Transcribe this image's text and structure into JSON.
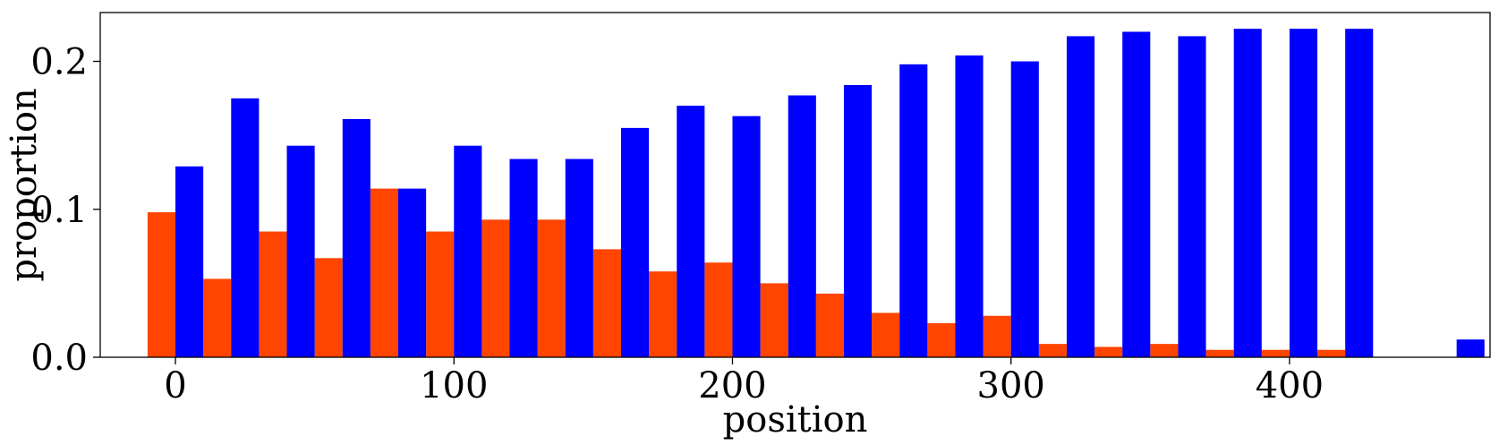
{
  "chart_data": {
    "type": "bar",
    "xlabel": "position",
    "ylabel": "proportion",
    "xlim": [
      -27,
      472
    ],
    "ylim": [
      0,
      0.233
    ],
    "xticks": [
      0,
      100,
      200,
      300,
      400
    ],
    "xtick_labels": [
      "0",
      "100",
      "200",
      "300",
      "400"
    ],
    "yticks": [
      0.0,
      0.1,
      0.2
    ],
    "ytick_labels": [
      "0.0",
      "0.1",
      "0.2"
    ],
    "bin_width": 20,
    "grid": false,
    "series": [
      {
        "color": "#ff4500",
        "bins": [
          {
            "x": 0,
            "value": 0.098
          },
          {
            "x": 20,
            "value": 0.053
          },
          {
            "x": 40,
            "value": 0.085
          },
          {
            "x": 60,
            "value": 0.067
          },
          {
            "x": 80,
            "value": 0.114
          },
          {
            "x": 100,
            "value": 0.085
          },
          {
            "x": 120,
            "value": 0.093
          },
          {
            "x": 140,
            "value": 0.093
          },
          {
            "x": 160,
            "value": 0.073
          },
          {
            "x": 180,
            "value": 0.058
          },
          {
            "x": 200,
            "value": 0.064
          },
          {
            "x": 220,
            "value": 0.05
          },
          {
            "x": 240,
            "value": 0.043
          },
          {
            "x": 260,
            "value": 0.03
          },
          {
            "x": 280,
            "value": 0.023
          },
          {
            "x": 300,
            "value": 0.028
          },
          {
            "x": 320,
            "value": 0.009
          },
          {
            "x": 340,
            "value": 0.007
          },
          {
            "x": 360,
            "value": 0.009
          },
          {
            "x": 380,
            "value": 0.005
          },
          {
            "x": 400,
            "value": 0.005
          },
          {
            "x": 420,
            "value": 0.005
          }
        ]
      },
      {
        "color": "#0000ff",
        "bins": [
          {
            "x": 20,
            "value": 0.129
          },
          {
            "x": 40,
            "value": 0.175
          },
          {
            "x": 60,
            "value": 0.143
          },
          {
            "x": 80,
            "value": 0.161
          },
          {
            "x": 100,
            "value": 0.114
          },
          {
            "x": 120,
            "value": 0.143
          },
          {
            "x": 140,
            "value": 0.134
          },
          {
            "x": 160,
            "value": 0.134
          },
          {
            "x": 180,
            "value": 0.155
          },
          {
            "x": 200,
            "value": 0.17
          },
          {
            "x": 220,
            "value": 0.163
          },
          {
            "x": 240,
            "value": 0.177
          },
          {
            "x": 260,
            "value": 0.184
          },
          {
            "x": 280,
            "value": 0.198
          },
          {
            "x": 300,
            "value": 0.204
          },
          {
            "x": 320,
            "value": 0.2
          },
          {
            "x": 340,
            "value": 0.217
          },
          {
            "x": 360,
            "value": 0.22
          },
          {
            "x": 380,
            "value": 0.217
          },
          {
            "x": 400,
            "value": 0.222
          },
          {
            "x": 420,
            "value": 0.222
          },
          {
            "x": 440,
            "value": 0.222
          },
          {
            "x": 480,
            "value": 0.012
          }
        ]
      }
    ]
  }
}
